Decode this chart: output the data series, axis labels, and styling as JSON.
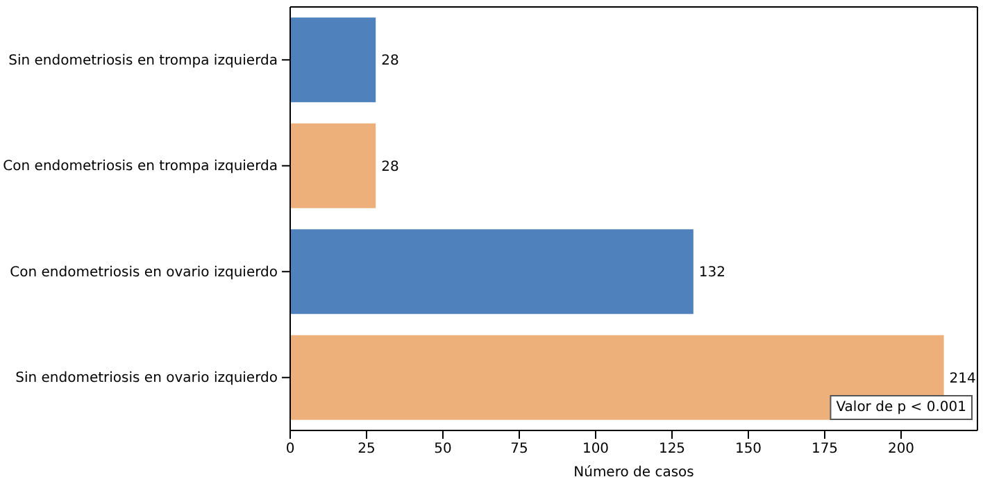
{
  "chart_data": {
    "type": "bar",
    "orientation": "horizontal",
    "xlabel": "Número de casos",
    "categories": [
      "Sin endometriosis en trompa izquierda",
      "Con endometriosis en trompa izquierda",
      "Con endometriosis en ovario izquierdo",
      "Sin endometriosis en ovario izquierdo"
    ],
    "values": [
      28,
      28,
      132,
      214
    ],
    "colors": [
      "#4f81bd",
      "#edb07a",
      "#4f81bd",
      "#edb07a"
    ],
    "xlim": [
      0,
      225
    ],
    "xticks": [
      0,
      25,
      50,
      75,
      100,
      125,
      150,
      175,
      200
    ],
    "data_labels": true,
    "grid": false,
    "annotations": [
      "Valor de p < 0.001"
    ]
  }
}
